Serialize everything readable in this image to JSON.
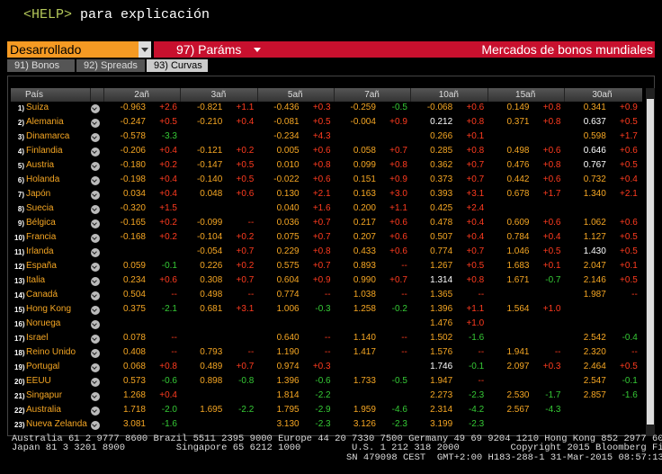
{
  "header": {
    "help_key": "<HELP>",
    "help_text": "para explicación"
  },
  "toolbar": {
    "dropdown": "Desarrollado",
    "params": "97) Paráms",
    "title": "Mercados de bonos mundiales"
  },
  "tabs": [
    "91) Bonos",
    "92) Spreads",
    "93) Curvas"
  ],
  "active_tab": 2,
  "table": {
    "columns": [
      "País",
      "2añ",
      "3añ",
      "5añ",
      "7añ",
      "10añ",
      "15añ",
      "30añ"
    ],
    "rows": [
      {
        "num": "1)",
        "country": "Suiza",
        "cells": [
          [
            "-0.963",
            "+2.6"
          ],
          [
            "-0.821",
            "+1.1"
          ],
          [
            "-0.436",
            "+0.3"
          ],
          [
            "-0.259",
            "-0.5"
          ],
          [
            "-0.068",
            "+0.6"
          ],
          [
            "0.149",
            "+0.8"
          ],
          [
            "0.341",
            "+0.9"
          ]
        ]
      },
      {
        "num": "2)",
        "country": "Alemania",
        "cells": [
          [
            "-0.247",
            "+0.5"
          ],
          [
            "-0.210",
            "+0.4"
          ],
          [
            "-0.081",
            "+0.5"
          ],
          [
            "-0.004",
            "+0.9"
          ],
          [
            {
              "text": "0.212",
              "highlight": true
            },
            "+0.8"
          ],
          [
            "0.371",
            "+0.8"
          ],
          [
            {
              "text": "0.637",
              "highlight": true
            },
            "+0.5"
          ]
        ]
      },
      {
        "num": "3)",
        "country": "Dinamarca",
        "cells": [
          [
            "-0.578",
            "-3.3"
          ],
          null,
          [
            "-0.234",
            "+4.3"
          ],
          null,
          [
            "0.266",
            "+0.1"
          ],
          null,
          [
            "0.598",
            "+1.7"
          ]
        ]
      },
      {
        "num": "4)",
        "country": "Finlandia",
        "cells": [
          [
            "-0.206",
            "+0.4"
          ],
          [
            "-0.121",
            "+0.2"
          ],
          [
            "0.005",
            "+0.6"
          ],
          [
            "0.058",
            "+0.7"
          ],
          [
            "0.285",
            "+0.8"
          ],
          [
            "0.498",
            "+0.6"
          ],
          [
            {
              "text": "0.646",
              "highlight": true
            },
            "+0.6"
          ]
        ]
      },
      {
        "num": "5)",
        "country": "Austria",
        "cells": [
          [
            "-0.180",
            "+0.2"
          ],
          [
            "-0.147",
            "+0.5"
          ],
          [
            "0.010",
            "+0.8"
          ],
          [
            "0.099",
            "+0.8"
          ],
          [
            "0.362",
            "+0.7"
          ],
          [
            "0.476",
            "+0.8"
          ],
          [
            {
              "text": "0.767",
              "highlight": true
            },
            "+0.5"
          ]
        ]
      },
      {
        "num": "6)",
        "country": "Holanda",
        "cells": [
          [
            "-0.198",
            "+0.4"
          ],
          [
            "-0.140",
            "+0.5"
          ],
          [
            "-0.022",
            "+0.6"
          ],
          [
            "0.151",
            "+0.9"
          ],
          [
            "0.373",
            "+0.7"
          ],
          [
            "0.442",
            "+0.6"
          ],
          [
            "0.732",
            "+0.4"
          ]
        ]
      },
      {
        "num": "7)",
        "country": "Japón",
        "cells": [
          [
            "0.034",
            "+0.4"
          ],
          [
            "0.048",
            "+0.6"
          ],
          [
            "0.130",
            "+2.1"
          ],
          [
            "0.163",
            "+3.0"
          ],
          [
            "0.393",
            "+3.1"
          ],
          [
            "0.678",
            "+1.7"
          ],
          [
            "1.340",
            "+2.1"
          ]
        ]
      },
      {
        "num": "8)",
        "country": "Suecia",
        "cells": [
          [
            "-0.320",
            "+1.5"
          ],
          null,
          [
            "0.040",
            "+1.6"
          ],
          [
            "0.200",
            "+1.1"
          ],
          [
            "0.425",
            "+2.4"
          ],
          null,
          null
        ]
      },
      {
        "num": "9)",
        "country": "Bélgica",
        "cells": [
          [
            "-0.165",
            "+0.2"
          ],
          [
            "-0.099",
            "--"
          ],
          [
            "0.036",
            "+0.7"
          ],
          [
            "0.217",
            "+0.6"
          ],
          [
            "0.478",
            "+0.4"
          ],
          [
            "0.609",
            "+0.6"
          ],
          [
            "1.062",
            "+0.6"
          ]
        ]
      },
      {
        "num": "10)",
        "country": "Francia",
        "cells": [
          [
            "-0.168",
            "+0.2"
          ],
          [
            "-0.104",
            "+0.2"
          ],
          [
            "0.075",
            "+0.7"
          ],
          [
            "0.207",
            "+0.6"
          ],
          [
            "0.507",
            "+0.4"
          ],
          [
            "0.784",
            "+0.4"
          ],
          [
            "1.127",
            "+0.5"
          ]
        ]
      },
      {
        "num": "11)",
        "country": "Irlanda",
        "cells": [
          null,
          [
            "-0.054",
            "+0.7"
          ],
          [
            "0.229",
            "+0.8"
          ],
          [
            "0.433",
            "+0.6"
          ],
          [
            "0.774",
            "+0.7"
          ],
          [
            "1.046",
            "+0.5"
          ],
          [
            {
              "text": "1.430",
              "highlight": true
            },
            "+0.5"
          ]
        ]
      },
      {
        "num": "12)",
        "country": "España",
        "cells": [
          [
            "0.059",
            "-0.1"
          ],
          [
            "0.226",
            "+0.2"
          ],
          [
            "0.575",
            "+0.7"
          ],
          [
            "0.893",
            "--"
          ],
          [
            "1.267",
            "+0.5"
          ],
          [
            "1.683",
            "+0.1"
          ],
          [
            "2.047",
            "+0.1"
          ]
        ]
      },
      {
        "num": "13)",
        "country": "Italia",
        "cells": [
          [
            "0.234",
            "+0.6"
          ],
          [
            "0.308",
            "+0.7"
          ],
          [
            "0.604",
            "+0.9"
          ],
          [
            "0.990",
            "+0.7"
          ],
          [
            {
              "text": "1.314",
              "highlight": true
            },
            "+0.8"
          ],
          [
            "1.671",
            "-0.7"
          ],
          [
            "2.146",
            "+0.5"
          ]
        ]
      },
      {
        "num": "14)",
        "country": "Canadá",
        "cells": [
          [
            "0.504",
            "--"
          ],
          [
            "0.498",
            "--"
          ],
          [
            "0.774",
            "--"
          ],
          [
            "1.038",
            "--"
          ],
          [
            "1.365",
            "--"
          ],
          null,
          [
            "1.987",
            "--"
          ]
        ]
      },
      {
        "num": "15)",
        "country": "Hong Kong",
        "cells": [
          [
            "0.375",
            "-2.1"
          ],
          [
            "0.681",
            "+3.1"
          ],
          [
            "1.006",
            "-0.3"
          ],
          [
            "1.258",
            "-0.2"
          ],
          [
            "1.396",
            "+1.1"
          ],
          [
            "1.564",
            "+1.0"
          ],
          null
        ]
      },
      {
        "num": "16)",
        "country": "Noruega",
        "cells": [
          null,
          null,
          null,
          null,
          [
            "1.476",
            "+1.0"
          ],
          null,
          null
        ]
      },
      {
        "num": "17)",
        "country": "Israel",
        "cells": [
          [
            "0.078",
            "--"
          ],
          null,
          [
            "0.640",
            "--"
          ],
          [
            "1.140",
            "--"
          ],
          [
            "1.502",
            "-1.6"
          ],
          null,
          [
            "2.542",
            "-0.4"
          ]
        ]
      },
      {
        "num": "18)",
        "country": "Reino Unido",
        "cells": [
          [
            "0.408",
            "--"
          ],
          [
            "0.793",
            "--"
          ],
          [
            "1.190",
            "--"
          ],
          [
            "1.417",
            "--"
          ],
          [
            "1.576",
            "--"
          ],
          [
            "1.941",
            "--"
          ],
          [
            "2.320",
            "--"
          ]
        ]
      },
      {
        "num": "19)",
        "country": "Portugal",
        "cells": [
          [
            "0.068",
            "+0.8"
          ],
          [
            "0.489",
            "+0.7"
          ],
          [
            "0.974",
            "+0.3"
          ],
          null,
          [
            {
              "text": "1.746",
              "highlight": true
            },
            "-0.1"
          ],
          [
            "2.097",
            "+0.3"
          ],
          [
            "2.464",
            "+0.5"
          ]
        ]
      },
      {
        "num": "20)",
        "country": "EEUU",
        "cells": [
          [
            "0.573",
            "-0.6"
          ],
          [
            "0.898",
            "-0.8"
          ],
          [
            "1.396",
            "-0.6"
          ],
          [
            "1.733",
            "-0.5"
          ],
          [
            "1.947",
            "--"
          ],
          null,
          [
            "2.547",
            "-0.1"
          ]
        ]
      },
      {
        "num": "21)",
        "country": "Singapur",
        "cells": [
          [
            "1.268",
            "+0.4"
          ],
          null,
          [
            "1.814",
            "-2.2"
          ],
          null,
          [
            "2.273",
            "-2.3"
          ],
          [
            "2.530",
            "-1.7"
          ],
          [
            "2.857",
            "-1.6"
          ]
        ]
      },
      {
        "num": "22)",
        "country": "Australia",
        "cells": [
          [
            "1.718",
            "-2.0"
          ],
          [
            "1.695",
            "-2.2"
          ],
          [
            "1.795",
            "-2.9"
          ],
          [
            "1.959",
            "-4.6"
          ],
          [
            "2.314",
            "-4.2"
          ],
          [
            "2.567",
            "-4.3"
          ],
          null
        ]
      },
      {
        "num": "23)",
        "country": "Nueva Zelanda",
        "cells": [
          [
            "3.081",
            "-1.6"
          ],
          null,
          [
            "3.130",
            "-2.3"
          ],
          [
            "3.126",
            "-2.3"
          ],
          [
            "3.199",
            "-2.3"
          ],
          null,
          null
        ]
      }
    ]
  },
  "footer": [
    "Australia 61 2 9777 8600 Brazil 5511 2395 9000 Europe 44 20 7330 7500 Germany 49 69 9204 1210 Hong Kong 852 2977 6000",
    "Japan 81 3 3201 8900         Singapore 65 6212 1000         U.S. 1 212 318 2000         Copyright 2015 Bloomberg Finance L.P.",
    "SN 479098 CEST  GMT+2:00 H183-288-1 31-Mar-2015 08:57:13"
  ]
}
